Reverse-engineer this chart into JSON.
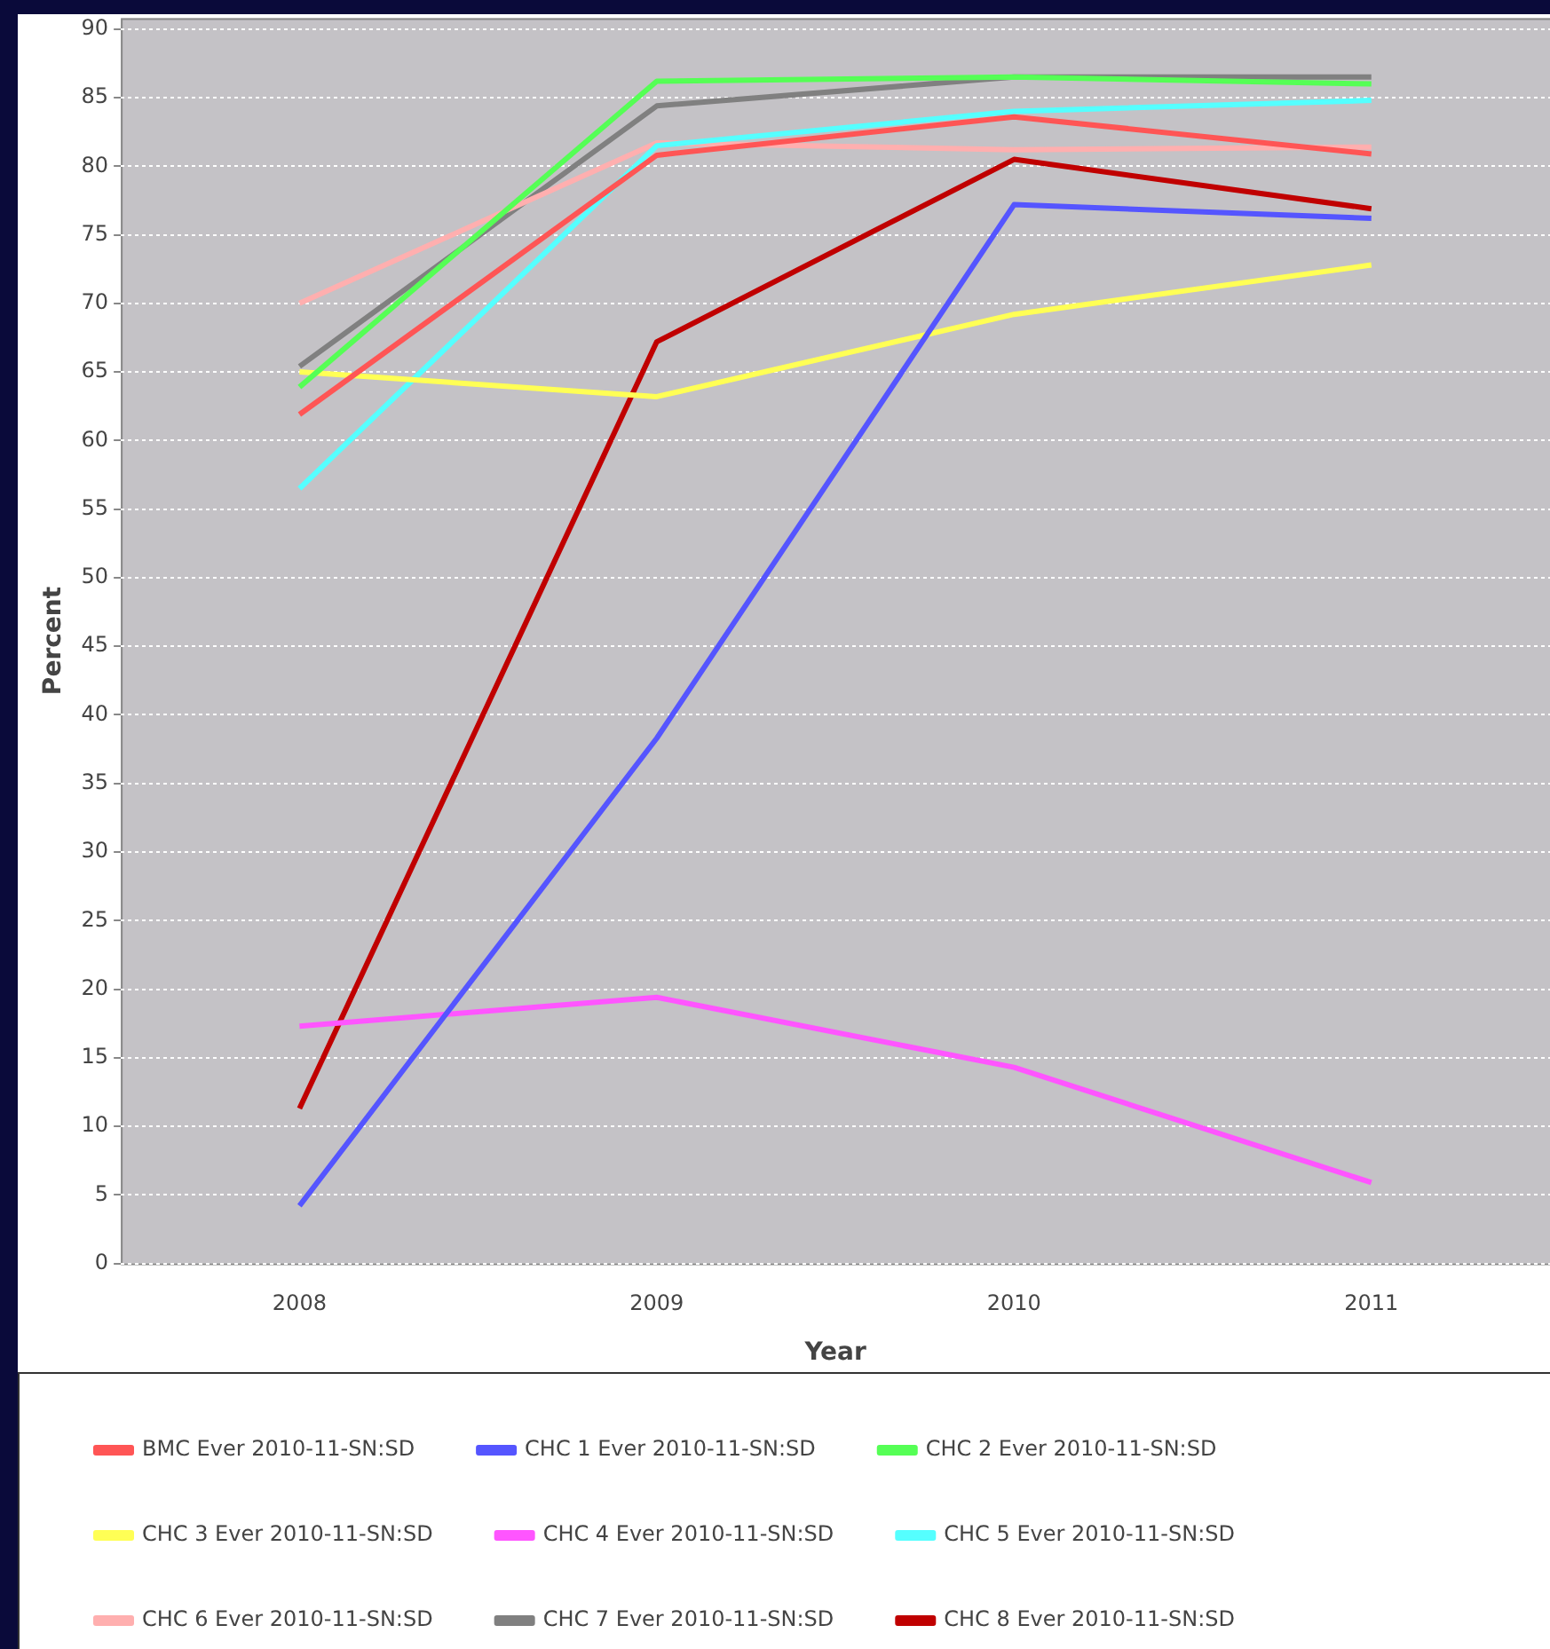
{
  "chart_data": {
    "type": "line",
    "xlabel": "Year",
    "ylabel": "Percent",
    "categories": [
      "2008",
      "2009",
      "2010",
      "2011"
    ],
    "ylim": [
      0,
      90.8
    ],
    "yticks": [
      0,
      5,
      10,
      15,
      20,
      25,
      30,
      35,
      40,
      45,
      50,
      55,
      60,
      65,
      70,
      75,
      80,
      85,
      90
    ],
    "grid": "y",
    "legend": "bottom",
    "marker": "none",
    "line_style": "solid",
    "series": [
      {
        "name": "BMC Ever 2010-11-SN:SD",
        "color": "#ff5555",
        "values": [
          61.9,
          80.8,
          83.6,
          80.9
        ]
      },
      {
        "name": "CHC 1 Ever 2010-11-SN:SD",
        "color": "#5555ff",
        "values": [
          4.2,
          38.3,
          77.2,
          76.2
        ]
      },
      {
        "name": "CHC 2 Ever 2010-11-SN:SD",
        "color": "#55ff55",
        "values": [
          63.9,
          86.2,
          86.5,
          86.0
        ]
      },
      {
        "name": "CHC 3 Ever 2010-11-SN:SD",
        "color": "#ffff55",
        "values": [
          65.0,
          63.2,
          69.2,
          72.8
        ]
      },
      {
        "name": "CHC 4 Ever 2010-11-SN:SD",
        "color": "#ff55ff",
        "values": [
          17.3,
          19.4,
          14.3,
          5.9
        ]
      },
      {
        "name": "CHC 5 Ever 2010-11-SN:SD",
        "color": "#55ffff",
        "values": [
          56.5,
          81.5,
          84.0,
          84.8
        ]
      },
      {
        "name": "CHC 6 Ever 2010-11-SN:SD",
        "color": "#ffafaf",
        "values": [
          70.0,
          81.7,
          81.2,
          81.4
        ]
      },
      {
        "name": "CHC 7 Ever 2010-11-SN:SD",
        "color": "#808080",
        "values": [
          65.4,
          84.4,
          86.5,
          86.5
        ]
      },
      {
        "name": "CHC 8 Ever 2010-11-SN:SD",
        "color": "#c00000",
        "values": [
          11.3,
          67.2,
          80.5,
          76.9
        ]
      }
    ]
  }
}
